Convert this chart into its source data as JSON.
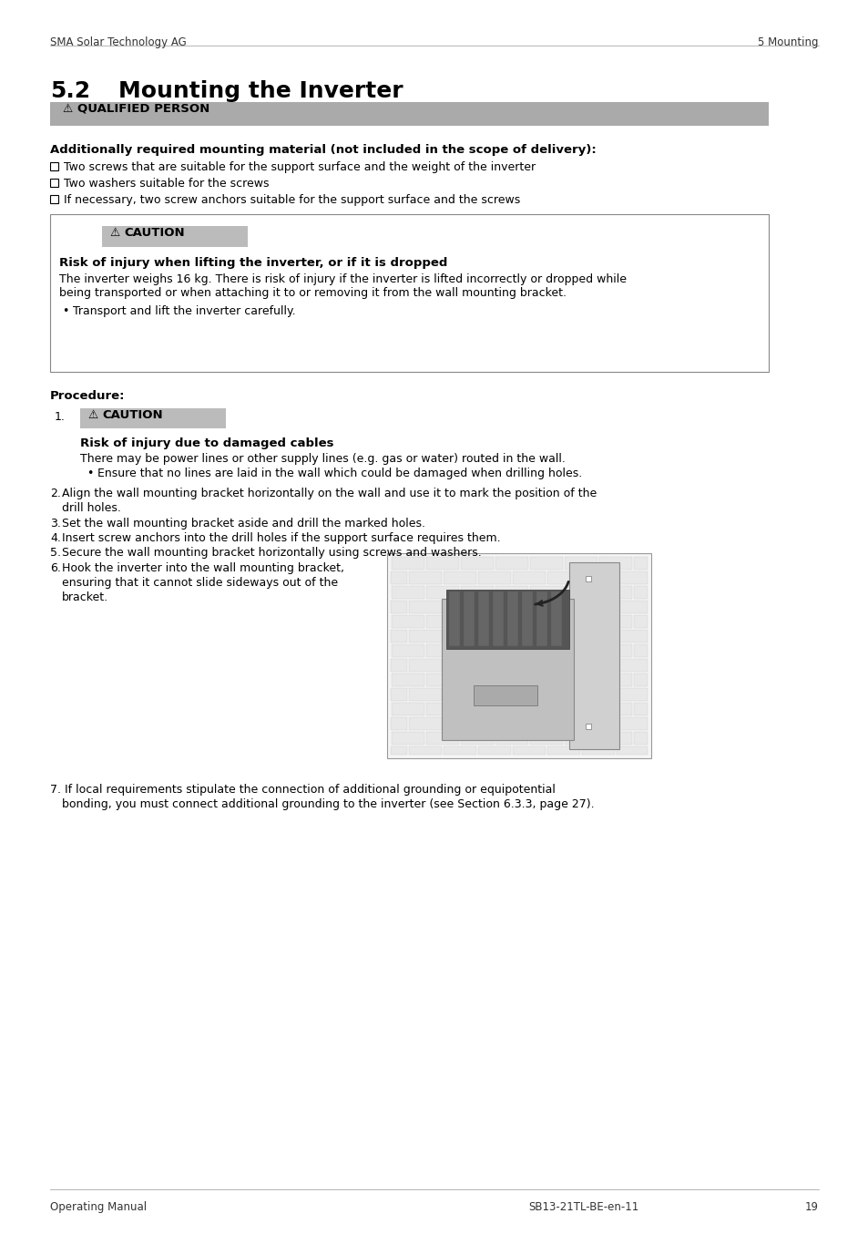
{
  "header_left": "SMA Solar Technology AG",
  "header_right": "5 Mounting",
  "title_num": "5.2",
  "title_text": "Mounting the Inverter",
  "qualified_person_bar": "QUALIFIED PERSON",
  "qualified_person_bg": "#aaaaaa",
  "section_bold": "Additionally required mounting material (not included in the scope of delivery):",
  "checklist": [
    "Two screws that are suitable for the support surface and the weight of the inverter",
    "Two washers suitable for the screws",
    "If necessary, two screw anchors suitable for the support surface and the screws"
  ],
  "caution_bg": "#bbbbbb",
  "caution_label": "CAUTION",
  "caution_box_title": "Risk of injury when lifting the inverter, or if it is dropped",
  "caution_box_body1": "The inverter weighs 16 kg. There is risk of injury if the inverter is lifted incorrectly or dropped while",
  "caution_box_body2": "being transported or when attaching it to or removing it from the wall mounting bracket.",
  "caution_box_bullet": "Transport and lift the inverter carefully.",
  "procedure_label": "Procedure:",
  "step1_title": "Risk of injury due to damaged cables",
  "step1_body": "There may be power lines or other supply lines (e.g. gas or water) routed in the wall.",
  "step1_bullet": "Ensure that no lines are laid in the wall which could be damaged when drilling holes.",
  "step2": "Align the wall mounting bracket horizontally on the wall and use it to mark the position of the",
  "step2b": "drill holes.",
  "step3": "Set the wall mounting bracket aside and drill the marked holes.",
  "step4": "Insert screw anchors into the drill holes if the support surface requires them.",
  "step5": "Secure the wall mounting bracket horizontally using screws and washers.",
  "step6a": "Hook the inverter into the wall mounting bracket,",
  "step6b": "ensuring that it cannot slide sideways out of the",
  "step6c": "bracket.",
  "step7a": "7. If local requirements stipulate the connection of additional grounding or equipotential",
  "step7b": "bonding, you must connect additional grounding to the inverter (see Section 6.3.3, page 27).",
  "footer_left": "Operating Manual",
  "footer_center": "SB13-21TL-BE-en-11",
  "footer_page": "19",
  "bg_color": "#ffffff",
  "text_color": "#000000",
  "gray_text": "#555555"
}
